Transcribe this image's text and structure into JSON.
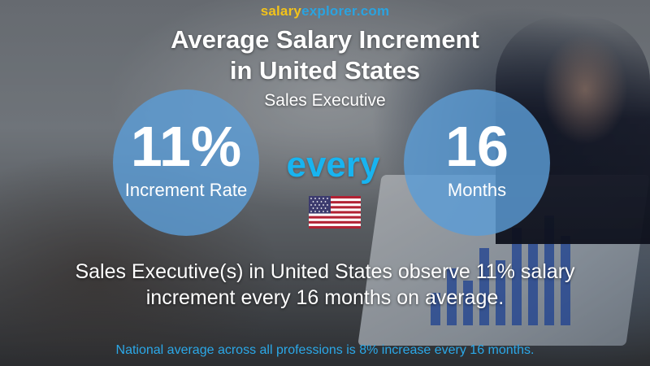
{
  "site": {
    "name_a": "salary",
    "name_b": "explorer",
    "name_c": ".com"
  },
  "header": {
    "title_line1": "Average Salary Increment",
    "title_line2": "in United States",
    "subtitle": "Sales Executive"
  },
  "rate": {
    "value": "11%",
    "label": "Increment Rate"
  },
  "connector": "every",
  "period": {
    "value": "16",
    "label": "Months"
  },
  "flag": {
    "icon": "us-flag-icon",
    "colors": {
      "red": "#b22234",
      "white": "#ffffff",
      "blue": "#3c3b6e"
    }
  },
  "description": {
    "line1": "Sales Executive(s) in United States observe 11% salary",
    "line2": "increment every 16 months on average."
  },
  "footnote": "National average across all professions is 8% increase every 16 months.",
  "colors": {
    "accent_yellow": "#f3c31a",
    "accent_blue": "#2aa3e0",
    "circle": "#5c9cd6",
    "every": "#18b4f0"
  }
}
